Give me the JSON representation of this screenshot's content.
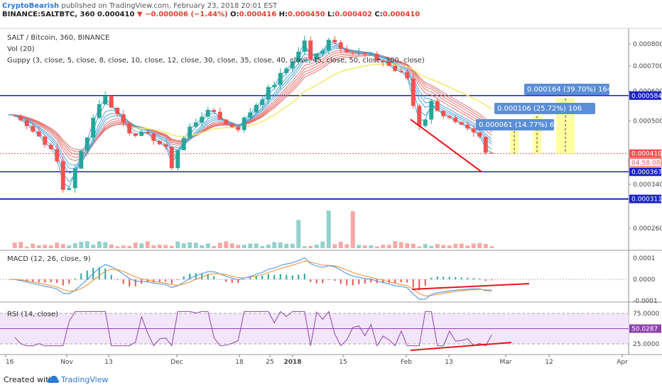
{
  "header": {
    "author": "CryptoBearish",
    "published": "published on TradingView.com, February 23, 2018 20:01 EST",
    "symbol": "BINANCE:SALTBTC, 360",
    "price": "0.000410",
    "change": "−0.000006 (−1.44%)",
    "o_label": "O:",
    "o": "0.000416",
    "h_label": "H:",
    "h": "0.000450",
    "l_label": "L:",
    "l": "0.000402",
    "c_label": "C:",
    "c": "0.000410"
  },
  "indicators": {
    "pair": "SALT / Bitcoin, 360, BINANCE",
    "vol": "Vol (20)",
    "guppy": "Guppy (3, close, 5, close, 8, close, 10, close, 12, close, 30, close, 35, close, 40, close, 45, close, 50, close, 200, close)",
    "macd": "MACD (12, 26, close, 9)",
    "rsi": "RSI (14, close)"
  },
  "footer": {
    "created_with": "Created with",
    "brand": "TradingView"
  },
  "colors": {
    "up": "#26a69a",
    "down": "#ef5350",
    "ema_fast": "#4fa3d8",
    "ema_slow": "#e57373",
    "ema200": "#f2e96a",
    "hline": "#1a23c8",
    "trend": "#e8141c",
    "measure": "#ffff80",
    "rsi": "#8e44ad",
    "rsi_band": "#f3e6fa",
    "macd": "#3d8ee6",
    "signal": "#f08a24"
  },
  "chart_data": {
    "type": "candlestick",
    "price_axis": {
      "ticks": [
        "0.000800",
        "0.000700",
        "0.000600",
        "0.000500",
        "0.000340",
        "0.000260"
      ],
      "scale": "log"
    },
    "x_ticks": [
      "16",
      "Nov",
      "13",
      "Dec",
      "18",
      "25",
      "2018",
      "15",
      "Feb",
      "13",
      "Mar",
      "12",
      "Apr"
    ],
    "horizontal_levels": [
      {
        "label": "0.000584",
        "value": 0.000584
      },
      {
        "label": "0.000367",
        "value": 0.000367
      },
      {
        "label": "0.000311",
        "value": 0.000311
      }
    ],
    "last_price": {
      "label": "0.000410",
      "value": 0.00041,
      "countdown": "04:58:08"
    },
    "targets": [
      {
        "label": "0.000061 (14.77%) 61",
        "delta": 6.1e-05,
        "percent": 14.77,
        "bars": 61
      },
      {
        "label": "0.000106 (25.72%) 106",
        "delta": 0.000106,
        "percent": 25.72,
        "bars": 106
      },
      {
        "label": "0.000164 (39.70%) 164",
        "delta": 0.000164,
        "percent": 39.7,
        "bars": 164
      }
    ],
    "macd_axis": {
      "ticks": [
        "0.0001",
        "0.0000",
        "-0.0001"
      ]
    },
    "rsi_axis": {
      "ticks": [
        "75.0000",
        "25.0000"
      ],
      "current": "50.0287"
    },
    "price_path": [
      [
        0,
        0.00052
      ],
      [
        2,
        0.00051
      ],
      [
        4,
        0.00047
      ],
      [
        6,
        0.00044
      ],
      [
        8,
        0.00039
      ],
      [
        9,
        0.00033
      ],
      [
        10,
        0.000335
      ],
      [
        11,
        0.00037
      ],
      [
        13,
        0.00046
      ],
      [
        15,
        0.00056
      ],
      [
        16,
        0.00058
      ],
      [
        18,
        0.00052
      ],
      [
        20,
        0.00047
      ],
      [
        22,
        0.00046
      ],
      [
        24,
        0.00045
      ],
      [
        26,
        0.00042
      ],
      [
        27,
        0.00038
      ],
      [
        28,
        0.00042
      ],
      [
        30,
        0.00048
      ],
      [
        32,
        0.00052
      ],
      [
        34,
        0.00053
      ],
      [
        36,
        0.00049
      ],
      [
        38,
        0.00048
      ],
      [
        40,
        0.00053
      ],
      [
        42,
        0.00058
      ],
      [
        44,
        0.00063
      ],
      [
        46,
        0.00069
      ],
      [
        48,
        0.00076
      ],
      [
        49,
        0.00082
      ],
      [
        50,
        0.00072
      ],
      [
        52,
        0.00078
      ],
      [
        53,
        0.00083
      ],
      [
        55,
        0.00079
      ],
      [
        57,
        0.00076
      ],
      [
        60,
        0.00074
      ],
      [
        62,
        0.00072
      ],
      [
        64,
        0.00068
      ],
      [
        66,
        0.00065
      ],
      [
        67,
        0.00055
      ],
      [
        68,
        0.00049
      ],
      [
        69,
        0.00051
      ],
      [
        70,
        0.00056
      ],
      [
        72,
        0.00052
      ],
      [
        74,
        0.00049
      ],
      [
        76,
        0.00047
      ],
      [
        78,
        0.00045
      ],
      [
        79,
        0.00041
      ],
      [
        80,
        0.00041
      ]
    ]
  }
}
